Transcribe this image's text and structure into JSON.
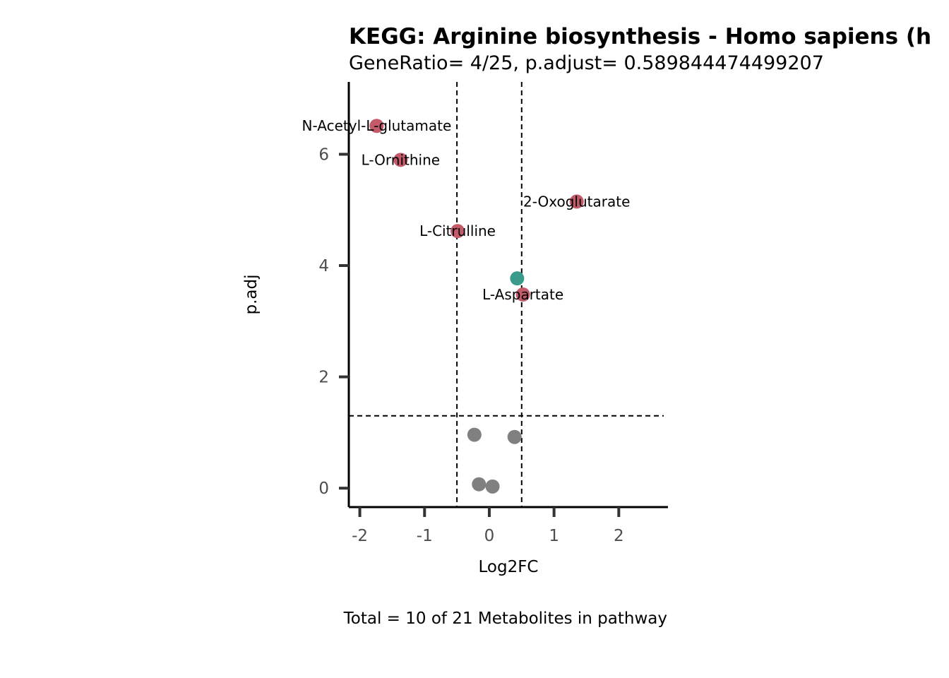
{
  "chart_data": {
    "type": "scatter",
    "title": "KEGG: Arginine biosynthesis - Homo sapiens (h",
    "subtitle": "GeneRatio= 4/25, p.adjust= 0.589844474499207",
    "xlabel": "Log2FC",
    "ylabel": "p.adj",
    "caption": "Total = 10 of 21 Metabolites in pathway",
    "xlim": [
      -2.17,
      2.76
    ],
    "ylim": [
      -0.34,
      7.3
    ],
    "x_ticks": [
      -2,
      -1,
      0,
      1,
      2
    ],
    "y_ticks": [
      0,
      2,
      4,
      6
    ],
    "grid": false,
    "reference_lines": {
      "vertical": [
        -0.5,
        0.5
      ],
      "horizontal": [
        1.3
      ]
    },
    "colors": {
      "up_down": "#c25a6a",
      "mid": "#3a9a8c",
      "ns": "#808080"
    },
    "points": [
      {
        "x": -1.74,
        "y": 6.51,
        "label": "N-Acetyl-L-glutamate",
        "color": "#c25a6a"
      },
      {
        "x": -1.37,
        "y": 5.9,
        "label": "L-Ornithine",
        "color": "#c25a6a"
      },
      {
        "x": 1.35,
        "y": 5.15,
        "label": "2-Oxoglutarate",
        "color": "#c25a6a"
      },
      {
        "x": -0.49,
        "y": 4.62,
        "label": "L-Citrulline",
        "color": "#c25a6a"
      },
      {
        "x": 0.43,
        "y": 3.77,
        "label": "",
        "color": "#3a9a8c"
      },
      {
        "x": 0.52,
        "y": 3.48,
        "label": "L-Aspartate",
        "color": "#c25a6a"
      },
      {
        "x": -0.23,
        "y": 0.96,
        "label": "",
        "color": "#808080"
      },
      {
        "x": 0.39,
        "y": 0.92,
        "label": "",
        "color": "#808080"
      },
      {
        "x": -0.16,
        "y": 0.07,
        "label": "",
        "color": "#808080"
      },
      {
        "x": 0.05,
        "y": 0.03,
        "label": "",
        "color": "#808080"
      }
    ]
  }
}
